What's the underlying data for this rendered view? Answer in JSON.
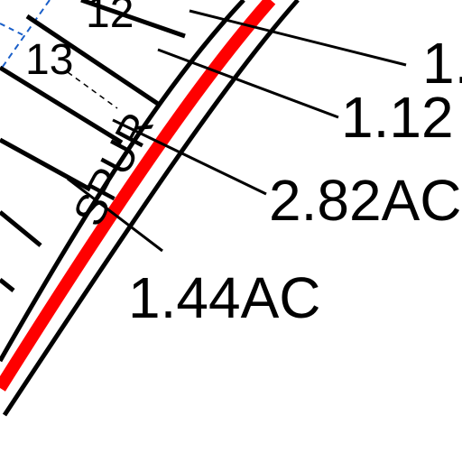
{
  "map": {
    "road_name": "SPUR",
    "lot_numbers": [
      "12",
      "13"
    ],
    "acreage_labels": [
      "1.",
      "1.12",
      "2.82AC",
      "1.44AC"
    ],
    "colors": {
      "background": "#ffffff",
      "parcel_lines": "#000000",
      "road_centerline": "#ff0000",
      "boundary_dashed": "#1a5fc9"
    }
  }
}
